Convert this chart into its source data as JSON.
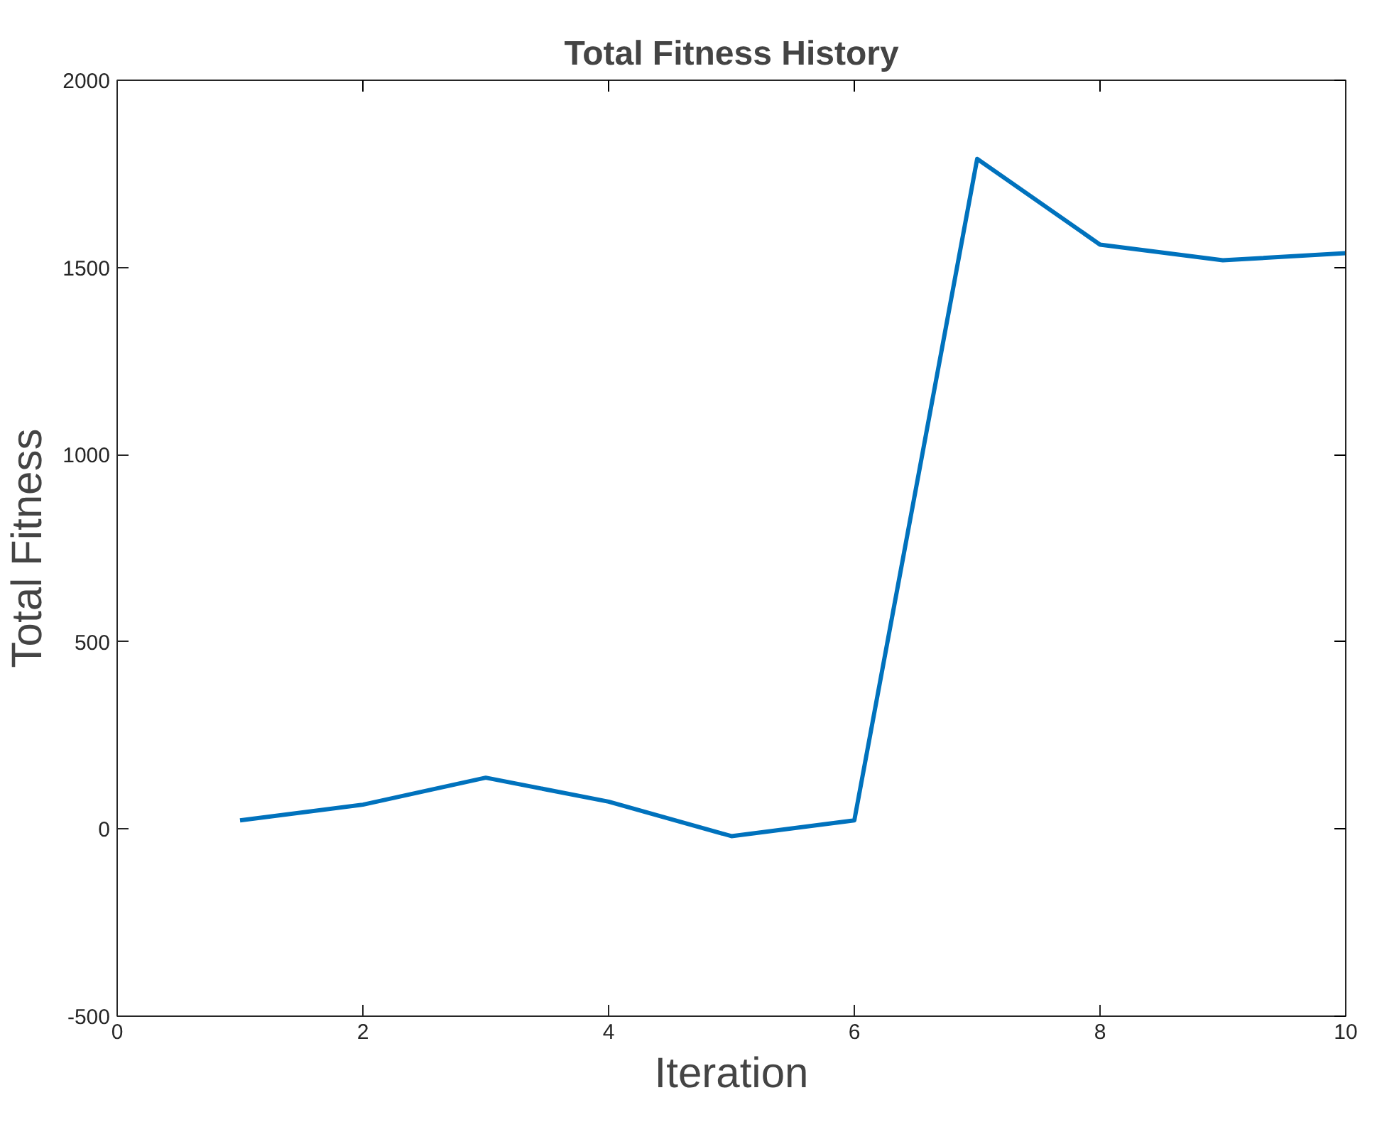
{
  "chart_data": {
    "type": "line",
    "title": "Total Fitness History",
    "xlabel": "Iteration",
    "ylabel": "Total Fitness",
    "x": [
      1,
      2,
      3,
      4,
      5,
      6,
      7,
      8,
      9,
      10
    ],
    "series": [
      {
        "color": "#0072bd",
        "values": [
          23,
          65,
          137,
          73,
          -19,
          23,
          1790,
          1561,
          1519,
          1538
        ]
      }
    ],
    "xlim": [
      0,
      10
    ],
    "xticks": [
      0,
      2,
      4,
      6,
      8,
      10
    ],
    "ylim": [
      -500,
      2000
    ],
    "yticks": [
      -500,
      0,
      500,
      1000,
      1500,
      2000
    ],
    "grid": false,
    "marker": "none",
    "line_style": "solid"
  }
}
